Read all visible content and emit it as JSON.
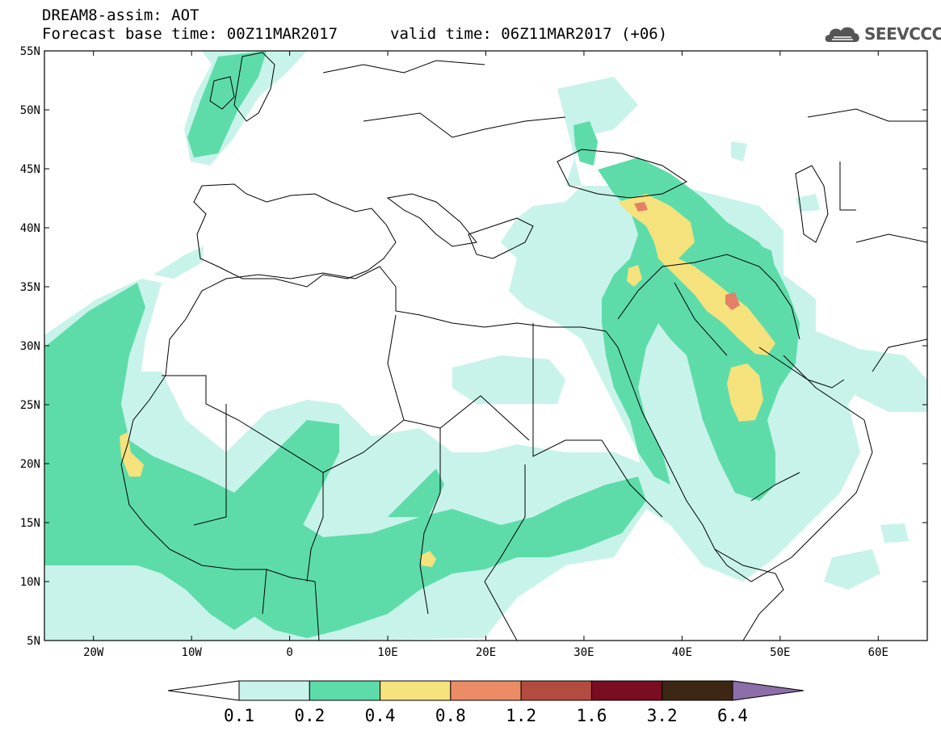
{
  "header": {
    "title": "DREAM8-assim: AOT",
    "base_time": "Forecast base time: 00Z11MAR2017",
    "valid_time": "valid time: 06Z11MAR2017 (+06)"
  },
  "logo": {
    "text": "SEEVCCC",
    "icon": "cloud-logo-icon"
  },
  "map": {
    "variable": "AOT",
    "lon_range": [
      -25,
      65
    ],
    "lat_range": [
      5,
      55
    ],
    "lat_labels": [
      "55N",
      "50N",
      "45N",
      "40N",
      "35N",
      "30N",
      "25N",
      "20N",
      "15N",
      "10N",
      "5N"
    ],
    "lon_labels": [
      "20W",
      "10W",
      "0",
      "10E",
      "20E",
      "30E",
      "40E",
      "50E",
      "60E"
    ]
  },
  "colorbar": {
    "levels": [
      "0.1",
      "0.2",
      "0.4",
      "0.8",
      "1.2",
      "1.6",
      "3.2",
      "6.4"
    ],
    "colors": [
      "#ffffff",
      "#c8f3ea",
      "#5ddcaa",
      "#f5e27c",
      "#eb8c66",
      "#b34c3f",
      "#7a0d22",
      "#3d2714",
      "#8c6ea8"
    ]
  },
  "colors": {
    "low": "#c8f3ea",
    "moderate": "#5ddcaa",
    "high": "#f5e27c",
    "very_high": "#e38066"
  }
}
